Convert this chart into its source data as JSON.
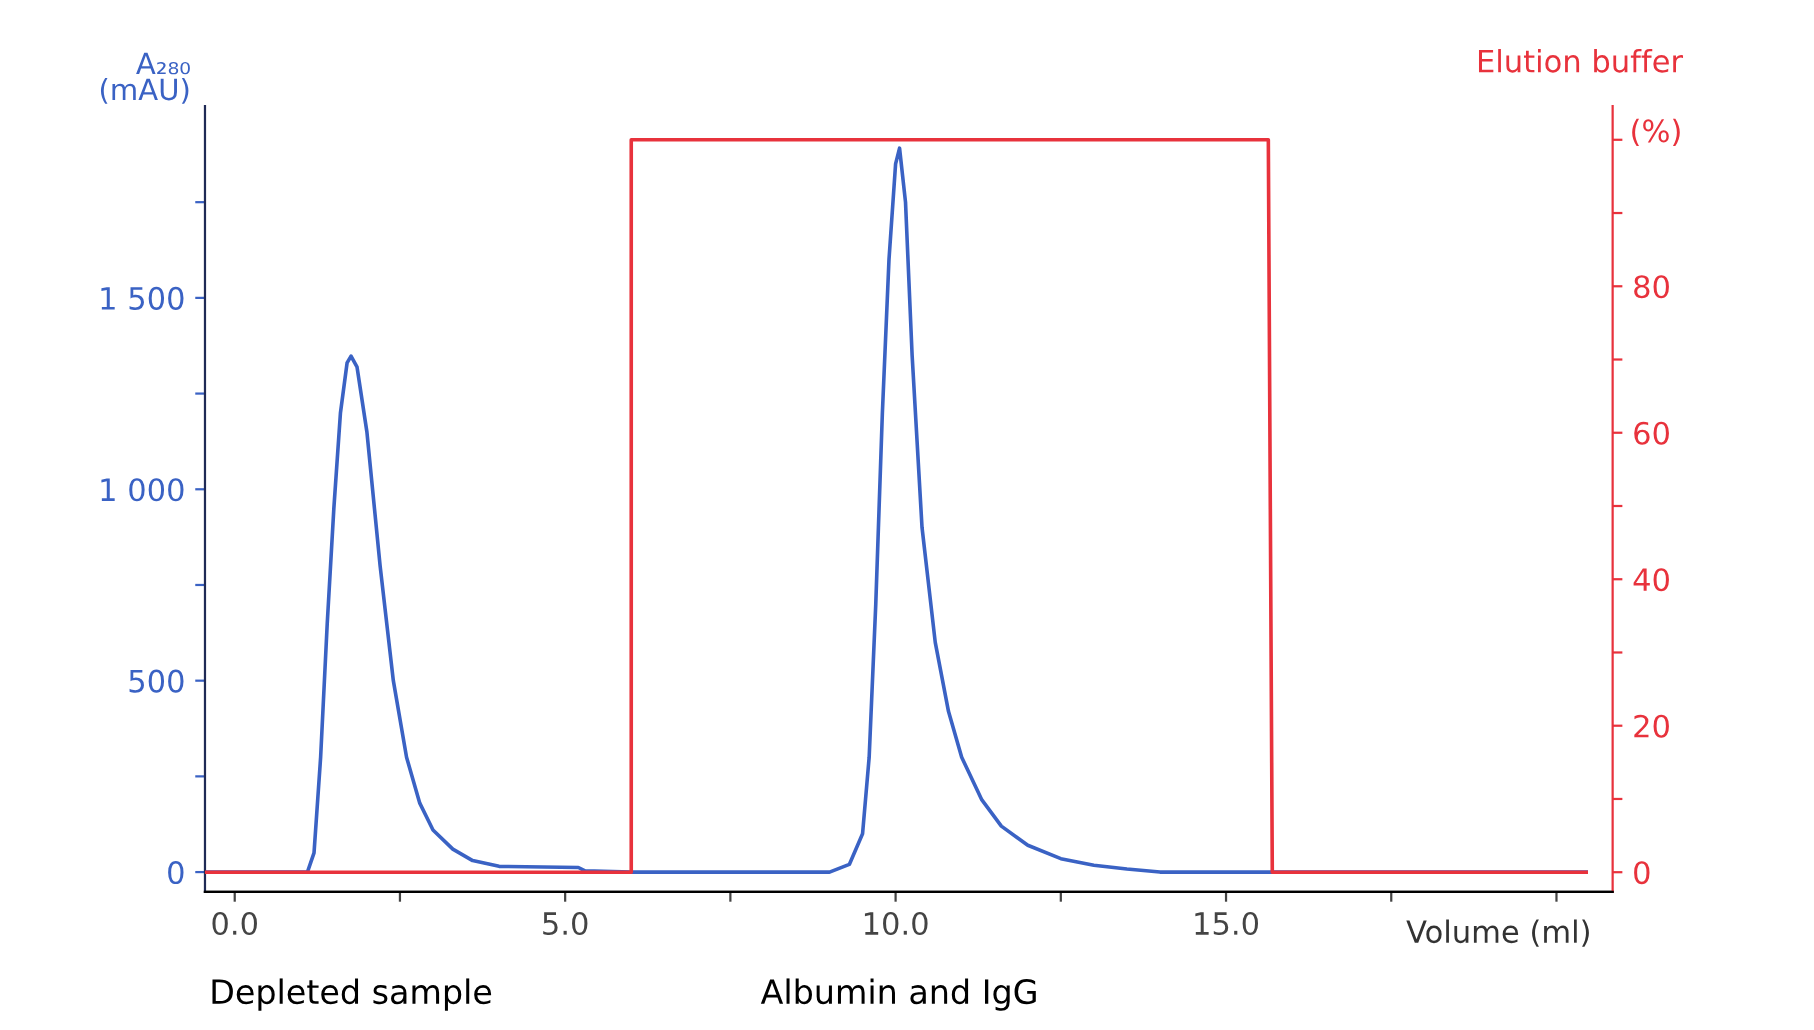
{
  "chart_data": {
    "type": "line",
    "ylabel": "A₂₈₀\n(mAU)",
    "y2label": "Elution buffer\n(%)",
    "xlabel": "Volume (ml)",
    "xlim": [
      -0.45,
      20.85
    ],
    "ylim": [
      -52,
      2001
    ],
    "y2lim": [
      -2.7,
      104.6
    ],
    "xticks": [
      {
        "value": 0,
        "label": "0.0"
      },
      {
        "value": 2.5,
        "label": null
      },
      {
        "value": 5,
        "label": "5.0"
      },
      {
        "value": 7.5,
        "label": null
      },
      {
        "value": 10,
        "label": "10.0"
      },
      {
        "value": 12.5,
        "label": null
      },
      {
        "value": 15,
        "label": "15.0"
      },
      {
        "value": 17.5,
        "label": null
      },
      {
        "value": 20,
        "label": null
      }
    ],
    "yticks": [
      0,
      {
        "value": 250,
        "label": null
      },
      500,
      {
        "value": 750,
        "label": null
      },
      {
        "value": 1000,
        "label": "1 000"
      },
      {
        "value": 1250,
        "label": null
      },
      {
        "value": 1500,
        "label": "1 500"
      },
      {
        "value": 1750,
        "label": null
      }
    ],
    "y2ticks": [
      0,
      {
        "value": 10,
        "label": null
      },
      20,
      {
        "value": 30,
        "label": null
      },
      40,
      {
        "value": 50,
        "label": null
      },
      60,
      {
        "value": 70,
        "label": null
      },
      80,
      {
        "value": 90,
        "label": null
      },
      {
        "value": 100,
        "label": null
      }
    ],
    "grid": false,
    "legend": false,
    "annotations": [
      "Depleted sample",
      "Albumin and IgG"
    ],
    "series": [
      {
        "color": "#3a62c4",
        "x": [
          -0.45,
          1.1,
          1.2,
          1.3,
          1.4,
          1.5,
          1.6,
          1.7,
          1.76,
          1.85,
          2.0,
          2.2,
          2.4,
          2.6,
          2.8,
          3.0,
          3.3,
          3.6,
          4.0,
          5.2,
          5.3,
          6.0,
          9.0,
          9.3,
          9.5,
          9.6,
          9.7,
          9.8,
          9.9,
          10.0,
          10.06,
          10.15,
          10.25,
          10.4,
          10.6,
          10.8,
          11.0,
          11.3,
          11.6,
          12.0,
          12.5,
          13.0,
          13.5,
          14.0,
          20.45
        ],
        "values": [
          0,
          0,
          50,
          300,
          650,
          950,
          1200,
          1330,
          1348,
          1320,
          1150,
          800,
          500,
          300,
          180,
          110,
          60,
          30,
          15,
          12,
          3,
          0,
          0,
          20,
          100,
          300,
          700,
          1200,
          1600,
          1850,
          1891,
          1750,
          1350,
          900,
          600,
          420,
          300,
          190,
          120,
          70,
          35,
          18,
          8,
          0,
          0
        ]
      },
      {
        "color": "#e8323c",
        "axis": "y2",
        "x": [
          -0.45,
          6.0,
          6.0,
          15.64,
          15.7,
          20.45
        ],
        "values": [
          0,
          0,
          100,
          100,
          0,
          0
        ]
      }
    ]
  }
}
